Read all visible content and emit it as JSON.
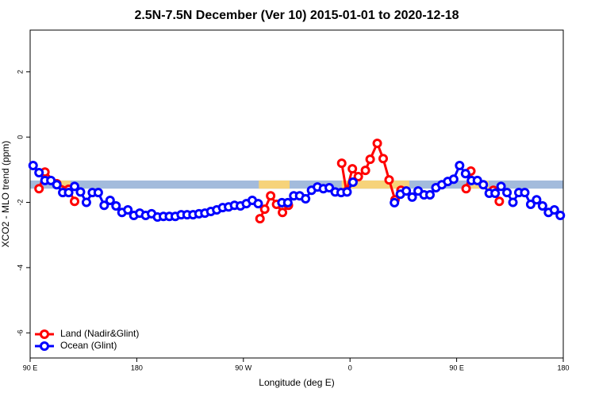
{
  "chart_data": {
    "type": "line",
    "title": "2.5N-7.5N December (Ver 10)   2015-01-01 to 2020-12-18",
    "x_label": "Longitude (deg E)",
    "y_label": "XCO2 - MLO trend (ppm)",
    "xlim": [
      90,
      540
    ],
    "ylim": [
      -6.77,
      3.28
    ],
    "xticks": [
      {
        "value": 90,
        "label": "90 E"
      },
      {
        "value": 180,
        "label": "180"
      },
      {
        "value": 270,
        "label": "90 W"
      },
      {
        "value": 360,
        "label": "0"
      },
      {
        "value": 450,
        "label": "90 E"
      },
      {
        "value": 540,
        "label": "180"
      }
    ],
    "yticks": [
      -6,
      -4,
      -2,
      0,
      2
    ],
    "legend": "bottom-left",
    "band": {
      "y": [
        -1.58,
        -1.33
      ],
      "segments": [
        {
          "x": [
            90,
            540
          ],
          "color": "#a3bbdc"
        },
        {
          "x": [
            116,
            124
          ],
          "color": "#f6d37a"
        },
        {
          "x": [
            283,
            309
          ],
          "color": "#f6d37a"
        },
        {
          "x": [
            353,
            410
          ],
          "color": "#f6d37a"
        },
        {
          "x": [
            462,
            477
          ],
          "color": "#f6d37a"
        }
      ]
    },
    "series": [
      {
        "name": "Land (Nadir&Glint)",
        "color": "#ff0000",
        "x": [
          97.5,
          102.5,
          112.5,
          122.5,
          127.5,
          null,
          284,
          288,
          293,
          298,
          303,
          308,
          null,
          353,
          357,
          362,
          367,
          373,
          377,
          383,
          388,
          393,
          398,
          403,
          null,
          458,
          462,
          null,
          481,
          486
        ],
        "values": [
          -1.58,
          -1.07,
          -1.43,
          -1.6,
          -1.97,
          null,
          -2.5,
          -2.21,
          -1.8,
          -2.06,
          -2.31,
          -2.09,
          null,
          -0.8,
          -1.67,
          -0.97,
          -1.21,
          -1.02,
          -0.68,
          -0.19,
          -0.66,
          -1.31,
          -1.92,
          -1.63,
          null,
          -1.58,
          -1.04,
          null,
          -1.63,
          -1.97
        ]
      },
      {
        "name": "Ocean (Glint)",
        "color": "#0000ff",
        "x": [
          92.5,
          97.5,
          102.5,
          107.5,
          112.5,
          117.5,
          122.5,
          127.5,
          132.5,
          137.5,
          142.5,
          147.5,
          152.5,
          157.5,
          162.5,
          167.5,
          172.5,
          177.5,
          182.5,
          187.5,
          192.5,
          197.5,
          202.5,
          207.5,
          212.5,
          217.5,
          222.5,
          227.5,
          232.5,
          237.5,
          242.5,
          247.5,
          252.5,
          257.5,
          262.5,
          267.5,
          272.5,
          277.5,
          282.5,
          null,
          302.5,
          307.5,
          312.5,
          317.5,
          322.5,
          327.5,
          332.5,
          337.5,
          342.5,
          347.5,
          352.5,
          357.5,
          362.5,
          null,
          397.5,
          402.5,
          407.5,
          412.5,
          417.5,
          422.5,
          427.5,
          432.5,
          437.5,
          442.5,
          447.5,
          452.5,
          457.5,
          462.5,
          467.5,
          472.5,
          477.5,
          482.5,
          487.5,
          492.5,
          497.5,
          502.5,
          507.5,
          512.5,
          517.5,
          522.5,
          527.5,
          532.5,
          537.5
        ],
        "values": [
          -0.87,
          -1.09,
          -1.33,
          -1.33,
          -1.46,
          -1.7,
          -1.7,
          -1.51,
          -1.68,
          -2.0,
          -1.7,
          -1.7,
          -2.09,
          -1.94,
          -2.11,
          -2.31,
          -2.23,
          -2.4,
          -2.33,
          -2.4,
          -2.35,
          -2.45,
          -2.43,
          -2.43,
          -2.43,
          -2.38,
          -2.38,
          -2.38,
          -2.35,
          -2.33,
          -2.28,
          -2.23,
          -2.16,
          -2.14,
          -2.09,
          -2.11,
          -2.04,
          -1.94,
          -2.04,
          null,
          -2.01,
          -2.01,
          -1.8,
          -1.8,
          -1.89,
          -1.63,
          -1.53,
          -1.58,
          -1.55,
          -1.68,
          -1.7,
          -1.68,
          -1.38,
          null,
          -2.01,
          -1.75,
          -1.65,
          -1.84,
          -1.65,
          -1.77,
          -1.77,
          -1.55,
          -1.46,
          -1.36,
          -1.29,
          -0.87,
          -1.12,
          -1.33,
          -1.33,
          -1.46,
          -1.72,
          -1.72,
          -1.51,
          -1.7,
          -2.0,
          -1.7,
          -1.7,
          -2.06,
          -1.92,
          -2.11,
          -2.31,
          -2.23,
          -2.4
        ]
      }
    ]
  }
}
